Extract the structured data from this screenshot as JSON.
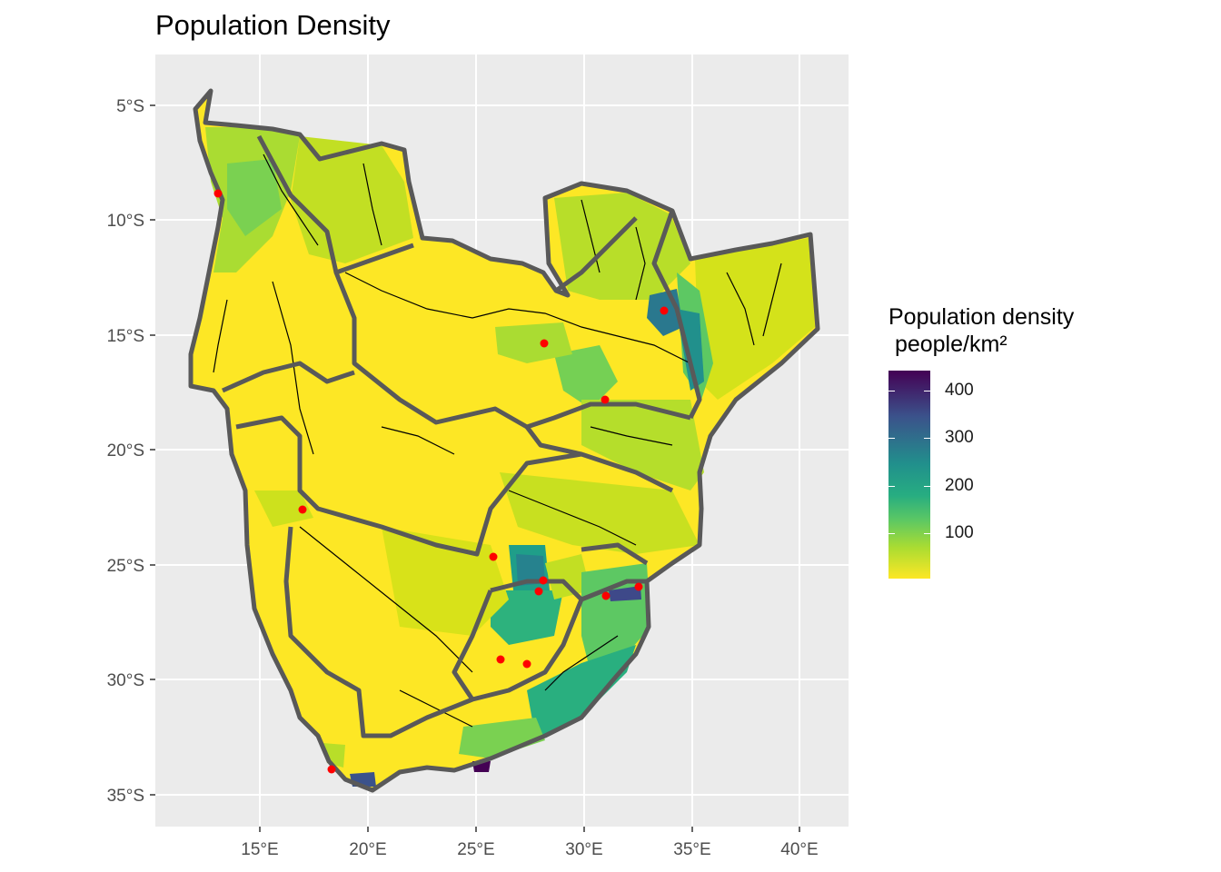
{
  "title": "Population Density",
  "axes": {
    "x_ticks": [
      "15°E",
      "20°E",
      "25°E",
      "30°E",
      "35°E",
      "40°E"
    ],
    "y_ticks": [
      "5°S",
      "10°S",
      "15°S",
      "20°S",
      "25°S",
      "30°S",
      "35°S"
    ]
  },
  "legend": {
    "title": "Population density\n people/km²",
    "labels": [
      "400",
      "300",
      "200",
      "100"
    ],
    "palette": "viridis (reversed)"
  },
  "colors": {
    "panel_bg": "#ebebeb",
    "grid": "#ffffff",
    "boundary": "#595959",
    "rivers": "#000000",
    "points": "#ff0000",
    "low_density": "#fde725",
    "high_density": "#440154"
  }
}
